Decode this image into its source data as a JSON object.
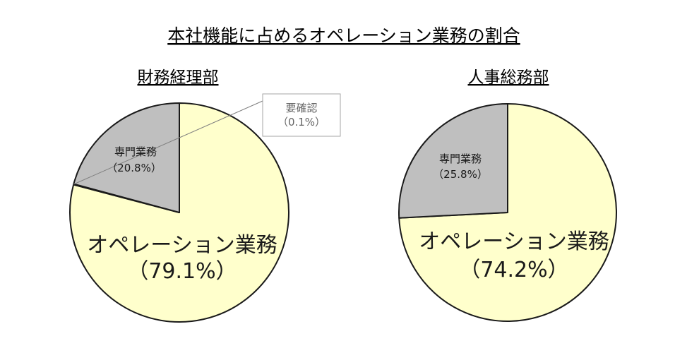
{
  "title": "本社機能に占めるオペレーション業務の割合",
  "colors": {
    "operation": "#FFFFCC",
    "specialist": "#BFBFBF",
    "confirm": "#BFBFBF",
    "outline": "#1a1a1a"
  },
  "chart_data": [
    {
      "type": "pie",
      "title": "財務経理部",
      "start_angle": "12-o'clock",
      "direction": "clockwise",
      "slices": [
        {
          "key": "operation",
          "label": "オペレーション業務",
          "percent_text": "（79.1%）",
          "value": 79.1
        },
        {
          "key": "confirm",
          "label": "要確認",
          "percent_text": "（0.1%）",
          "value": 0.1
        },
        {
          "key": "specialist",
          "label": "専門業務",
          "percent_text": "（20.8%）",
          "value": 20.8
        }
      ]
    },
    {
      "type": "pie",
      "title": "人事総務部",
      "start_angle": "12-o'clock",
      "direction": "clockwise",
      "slices": [
        {
          "key": "operation",
          "label": "オペレーション業務",
          "percent_text": "（74.2%）",
          "value": 74.2
        },
        {
          "key": "specialist",
          "label": "専門業務",
          "percent_text": "（25.8%）",
          "value": 25.8
        }
      ]
    }
  ]
}
